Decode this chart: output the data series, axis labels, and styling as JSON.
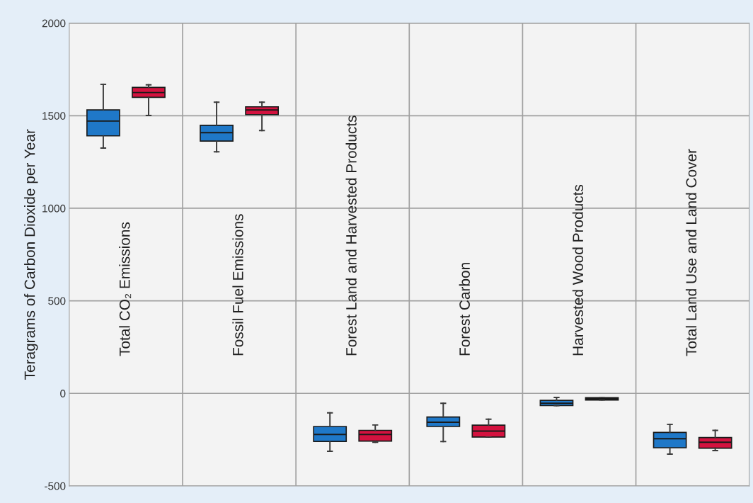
{
  "chart_data": {
    "type": "box",
    "ylabel": "Teragrams of Carbon Dioxide per Year",
    "categories": [
      "Total CO₂ Emissions",
      "Fossil Fuel Emissions",
      "Forest Land and Harvested Products",
      "Forest Carbon",
      "Harvested Wood Products",
      "Total Land Use and Land Cover"
    ],
    "ylim": [
      -500,
      2000
    ],
    "yticks": [
      -500,
      0,
      500,
      1000,
      1500,
      2000
    ],
    "grid": true,
    "series": [
      {
        "color": "#1f78c8",
        "boxes": [
          {
            "low": 1325,
            "q1": 1391,
            "median": 1471,
            "q3": 1531,
            "high": 1669
          },
          {
            "low": 1305,
            "q1": 1363,
            "median": 1408,
            "q3": 1448,
            "high": 1573
          },
          {
            "low": -313,
            "q1": -260,
            "median": -222,
            "q3": -179,
            "high": -105
          },
          {
            "low": -260,
            "q1": -179,
            "median": -156,
            "q3": -128,
            "high": -54
          },
          {
            "low": -66,
            "q1": -66,
            "median": -54,
            "q3": -38,
            "high": -22
          },
          {
            "low": -328,
            "q1": -294,
            "median": -245,
            "q3": -211,
            "high": -168
          }
        ]
      },
      {
        "color": "#d4123f",
        "boxes": [
          {
            "low": 1501,
            "q1": 1599,
            "median": 1625,
            "q3": 1653,
            "high": 1667
          },
          {
            "low": 1420,
            "q1": 1506,
            "median": 1531,
            "q3": 1548,
            "high": 1573
          },
          {
            "low": -264,
            "q1": -258,
            "median": -222,
            "q3": -200,
            "high": -171
          },
          {
            "low": -236,
            "q1": -236,
            "median": -204,
            "q3": -172,
            "high": -140
          },
          {
            "low": -36,
            "q1": -36,
            "median": -30,
            "q3": -23,
            "high": -23
          },
          {
            "low": -309,
            "q1": -296,
            "median": -264,
            "q3": -239,
            "high": -200
          }
        ]
      }
    ]
  }
}
